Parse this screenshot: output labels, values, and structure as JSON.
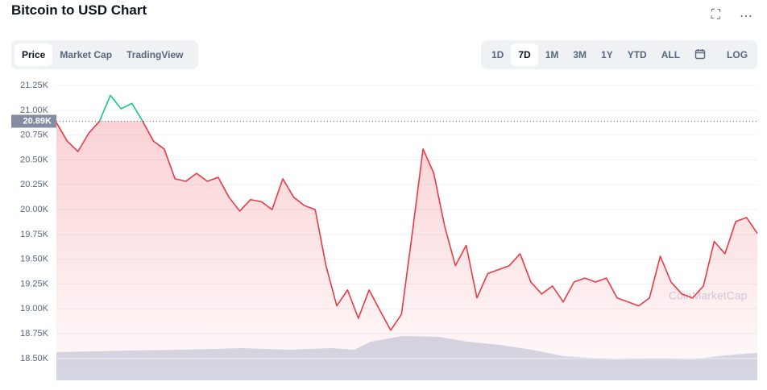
{
  "header": {
    "title": "Bitcoin to USD Chart"
  },
  "tabs": [
    "Price",
    "Market Cap",
    "TradingView"
  ],
  "ranges": [
    "1D",
    "7D",
    "1M",
    "3M",
    "1Y",
    "YTD",
    "ALL"
  ],
  "log": "LOG",
  "watermark": "CoinMarketCap",
  "chart_data": {
    "type": "line",
    "series": [
      {
        "name": "Price",
        "color": "#ea3943",
        "up_color": "#16c784",
        "values": [
          20877,
          20690,
          20585,
          20770,
          20890,
          21150,
          21015,
          21070,
          20890,
          20690,
          20610,
          20310,
          20285,
          20365,
          20285,
          20325,
          20125,
          19985,
          20100,
          20080,
          20000,
          20310,
          20125,
          20040,
          20000,
          19435,
          19030,
          19190,
          18905,
          19190,
          18985,
          18785,
          18945,
          19760,
          20610,
          20365,
          19835,
          19435,
          19640,
          19110,
          19355,
          19395,
          19435,
          19555,
          19270,
          19150,
          19230,
          19070,
          19270,
          19310,
          19270,
          19310,
          19110,
          19070,
          19030,
          19110,
          19530,
          19270,
          19150,
          19110,
          19230,
          19680,
          19555,
          19880,
          19920,
          19760
        ]
      }
    ],
    "baseline": {
      "value": 20890,
      "label": "20.89K"
    },
    "ylim": [
      18280,
      21340
    ],
    "yticks": [
      {
        "value": 18500,
        "label": "18.50K"
      },
      {
        "value": 18750,
        "label": "18.75K"
      },
      {
        "value": 19000,
        "label": "19.00K"
      },
      {
        "value": 19250,
        "label": "19.25K"
      },
      {
        "value": 19500,
        "label": "19.50K"
      },
      {
        "value": 19750,
        "label": "19.75K"
      },
      {
        "value": 20000,
        "label": "20.00K"
      },
      {
        "value": 20250,
        "label": "20.25K"
      },
      {
        "value": 20500,
        "label": "20.50K"
      },
      {
        "value": 20750,
        "label": "20.75K"
      },
      {
        "value": 21000,
        "label": "21.00K"
      },
      {
        "value": 21250,
        "label": "21.25K"
      }
    ],
    "grid": true
  }
}
